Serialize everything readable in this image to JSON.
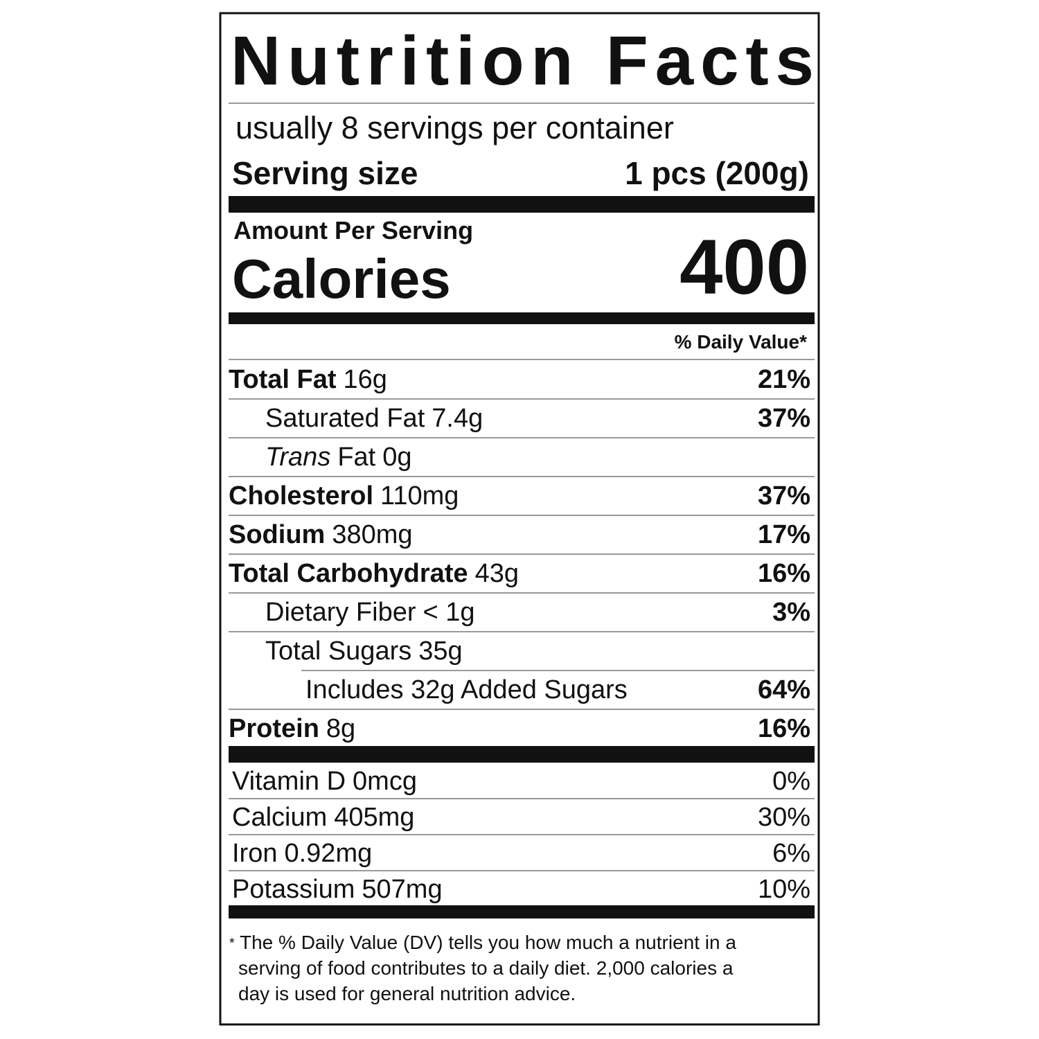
{
  "title": "Nutrition Facts",
  "servings": "usually 8 servings per container",
  "serving_size": {
    "label": "Serving size",
    "value": "1 pcs (200g)"
  },
  "amount_per_serving": "Amount Per Serving",
  "calories": {
    "label": "Calories",
    "value": "400"
  },
  "daily_value_header": "% Daily Value*",
  "nutrients": [
    {
      "name": "Total Fat",
      "amount": "16g",
      "dv": "21%",
      "sub": [
        {
          "name": "Saturated Fat",
          "amount": "7.4g",
          "dv": "37%"
        },
        {
          "prefix": "Trans",
          "name": "Fat",
          "amount": "0g"
        }
      ]
    },
    {
      "name": "Cholesterol",
      "amount": "110mg",
      "dv": "37%"
    },
    {
      "name": "Sodium",
      "amount": "380mg",
      "dv": "17%"
    },
    {
      "name": "Total Carbohydrate",
      "amount": "43g",
      "dv": "16%",
      "sub": [
        {
          "name": "Dietary Fiber",
          "amount": "< 1g",
          "dv": "3%"
        },
        {
          "name": "Total Sugars",
          "amount": "35g",
          "sub": [
            {
              "name": "Includes 32g Added Sugars",
              "dv": "64%"
            }
          ]
        }
      ]
    },
    {
      "name": "Protein",
      "amount": "8g",
      "dv": "16%"
    }
  ],
  "vitamins": [
    {
      "name": "Vitamin D",
      "amount": "0mcg",
      "dv": "0%"
    },
    {
      "name": "Calcium",
      "amount": "405mg",
      "dv": "30%"
    },
    {
      "name": "Iron",
      "amount": "0.92mg",
      "dv": "6%"
    },
    {
      "name": "Potassium",
      "amount": "507mg",
      "dv": "10%"
    }
  ],
  "footnote": {
    "marker": "*",
    "lines": [
      "The % Daily Value (DV) tells you how much a nutrient in a",
      "serving of food contributes to a daily diet. 2,000 calories a",
      "day is used for general nutrition advice."
    ]
  }
}
